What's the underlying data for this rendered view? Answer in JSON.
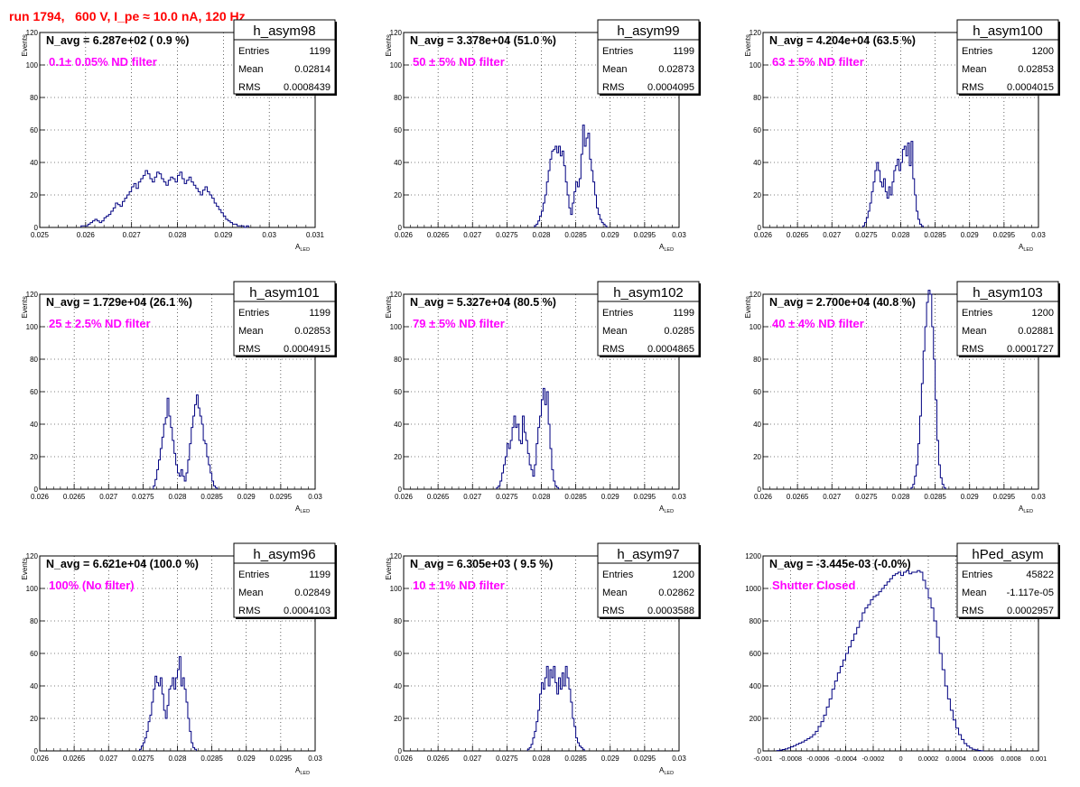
{
  "page": {
    "title": "run 1794,   600 V, I_pe ≈ 10.0 nA, 120 Hz"
  },
  "chart_data": [
    {
      "type": "histogram",
      "name": "h_asym98",
      "navg": "N_avg = 6.287e+02 ( 0.9 %)",
      "label": "0.1± 0.05% ND filter",
      "stats": {
        "entries": "1199",
        "mean": "0.02814",
        "rms": "0.0008439"
      },
      "xlabel": "A",
      "xlabel_sub": "LED",
      "ylabel": "Events",
      "xlim": [
        0.025,
        0.031
      ],
      "ylim": [
        0,
        120
      ],
      "xticks": [
        0.025,
        0.026,
        0.027,
        0.028,
        0.029,
        0.03,
        0.031
      ],
      "xtick_labels": [
        "0.025",
        "0.026",
        "0.027",
        "0.028",
        "0.029",
        "0.03",
        "0.031"
      ],
      "yticks": [
        0,
        20,
        40,
        60,
        80,
        100,
        120
      ],
      "ytick_labels": [
        "0",
        "20",
        "40",
        "60",
        "80",
        "100",
        "120"
      ],
      "bin_start": 0.0259,
      "bin_width": 5e-05,
      "counts": [
        1,
        1,
        1,
        2,
        3,
        4,
        5,
        4,
        3,
        4,
        6,
        7,
        8,
        10,
        12,
        15,
        14,
        13,
        16,
        18,
        20,
        22,
        25,
        27,
        24,
        28,
        30,
        32,
        35,
        33,
        30,
        28,
        31,
        34,
        33,
        30,
        28,
        26,
        29,
        31,
        30,
        28,
        32,
        34,
        30,
        27,
        29,
        31,
        28,
        26,
        24,
        22,
        20,
        23,
        25,
        22,
        20,
        18,
        15,
        13,
        11,
        9,
        7,
        5,
        4,
        3,
        2,
        2,
        1,
        1,
        1,
        0,
        1
      ]
    },
    {
      "type": "histogram",
      "name": "h_asym99",
      "navg": "N_avg = 3.378e+04 (51.0 %)",
      "label": "50 ± 5% ND filter",
      "stats": {
        "entries": "1199",
        "mean": "0.02873",
        "rms": "0.0004095"
      },
      "xlabel": "A",
      "xlabel_sub": "LED",
      "ylabel": "Events",
      "xlim": [
        0.026,
        0.03
      ],
      "ylim": [
        0,
        120
      ],
      "xticks": [
        0.026,
        0.0265,
        0.027,
        0.0275,
        0.028,
        0.0285,
        0.029,
        0.0295,
        0.03
      ],
      "xtick_labels": [
        "0.026",
        "0.0265",
        "0.027",
        "0.0275",
        "0.028",
        "0.0285",
        "0.029",
        "0.0295",
        "0.03"
      ],
      "yticks": [
        0,
        20,
        40,
        60,
        80,
        100,
        120
      ],
      "ytick_labels": [
        "0",
        "20",
        "40",
        "60",
        "80",
        "100",
        "120"
      ],
      "bin_start": 0.0279,
      "bin_width": 2.5e-05,
      "counts": [
        1,
        2,
        4,
        7,
        10,
        15,
        20,
        28,
        35,
        42,
        47,
        48,
        50,
        46,
        50,
        44,
        47,
        38,
        28,
        20,
        12,
        8,
        15,
        22,
        28,
        25,
        30,
        45,
        63,
        50,
        55,
        58,
        42,
        35,
        28,
        20,
        12,
        8,
        5,
        3,
        2,
        1
      ]
    },
    {
      "type": "histogram",
      "name": "h_asym100",
      "navg": "N_avg = 4.204e+04 (63.5 %)",
      "label": "63 ± 5% ND filter",
      "stats": {
        "entries": "1200",
        "mean": "0.02853",
        "rms": "0.0004015"
      },
      "xlabel": "A",
      "xlabel_sub": "LED",
      "ylabel": "Events",
      "xlim": [
        0.026,
        0.03
      ],
      "ylim": [
        0,
        120
      ],
      "xticks": [
        0.026,
        0.0265,
        0.027,
        0.0275,
        0.028,
        0.0285,
        0.029,
        0.0295,
        0.03
      ],
      "xtick_labels": [
        "0.026",
        "0.0265",
        "0.027",
        "0.0275",
        "0.028",
        "0.0285",
        "0.029",
        "0.0295",
        "0.03"
      ],
      "yticks": [
        0,
        20,
        40,
        60,
        80,
        100,
        120
      ],
      "ytick_labels": [
        "0",
        "20",
        "40",
        "60",
        "80",
        "100",
        "120"
      ],
      "bin_start": 0.02745,
      "bin_width": 2.5e-05,
      "counts": [
        1,
        3,
        6,
        10,
        15,
        22,
        28,
        35,
        40,
        35,
        28,
        25,
        30,
        22,
        18,
        25,
        20,
        28,
        35,
        38,
        42,
        35,
        40,
        48,
        50,
        44,
        52,
        38,
        53,
        30,
        20,
        10,
        5,
        2,
        1
      ]
    },
    {
      "type": "histogram",
      "name": "h_asym101",
      "navg": "N_avg = 1.729e+04 (26.1 %)",
      "label": "25 ± 2.5% ND filter",
      "stats": {
        "entries": "1199",
        "mean": "0.02853",
        "rms": "0.0004915"
      },
      "xlabel": "A",
      "xlabel_sub": "LED",
      "ylabel": "Events",
      "xlim": [
        0.026,
        0.03
      ],
      "ylim": [
        0,
        120
      ],
      "xticks": [
        0.026,
        0.0265,
        0.027,
        0.0275,
        0.028,
        0.0285,
        0.029,
        0.0295,
        0.03
      ],
      "xtick_labels": [
        "0.026",
        "0.0265",
        "0.027",
        "0.0275",
        "0.028",
        "0.0285",
        "0.029",
        "0.0295",
        "0.03"
      ],
      "yticks": [
        0,
        20,
        40,
        60,
        80,
        100,
        120
      ],
      "ytick_labels": [
        "0",
        "20",
        "40",
        "60",
        "80",
        "100",
        "120"
      ],
      "bin_start": 0.02765,
      "bin_width": 2.5e-05,
      "counts": [
        2,
        6,
        12,
        18,
        25,
        32,
        40,
        44,
        56,
        45,
        38,
        30,
        22,
        15,
        10,
        8,
        12,
        8,
        5,
        10,
        18,
        28,
        38,
        45,
        52,
        58,
        50,
        45,
        40,
        30,
        28,
        20,
        15,
        10,
        5,
        2,
        1
      ]
    },
    {
      "type": "histogram",
      "name": "h_asym102",
      "navg": "N_avg = 5.327e+04 (80.5 %)",
      "label": "79 ± 5% ND filter",
      "stats": {
        "entries": "1199",
        "mean": "0.0285",
        "rms": "0.0004865"
      },
      "xlabel": "A",
      "xlabel_sub": "LED",
      "ylabel": "Events",
      "xlim": [
        0.026,
        0.03
      ],
      "ylim": [
        0,
        120
      ],
      "xticks": [
        0.026,
        0.0265,
        0.027,
        0.0275,
        0.028,
        0.0285,
        0.029,
        0.0295,
        0.03
      ],
      "xtick_labels": [
        "0.026",
        "0.0265",
        "0.027",
        "0.0275",
        "0.028",
        "0.0285",
        "0.029",
        "0.0295",
        "0.03"
      ],
      "yticks": [
        0,
        20,
        40,
        60,
        80,
        100,
        120
      ],
      "ytick_labels": [
        "0",
        "20",
        "40",
        "60",
        "80",
        "100",
        "120"
      ],
      "bin_start": 0.02735,
      "bin_width": 2.5e-05,
      "counts": [
        1,
        2,
        5,
        10,
        15,
        20,
        28,
        25,
        30,
        38,
        45,
        38,
        40,
        30,
        28,
        45,
        35,
        30,
        22,
        15,
        12,
        8,
        15,
        28,
        38,
        45,
        55,
        62,
        52,
        60,
        40,
        25,
        12,
        5,
        2,
        1
      ]
    },
    {
      "type": "histogram",
      "name": "h_asym103",
      "navg": "N_avg = 2.700e+04 (40.8 %)",
      "label": "40 ± 4% ND filter",
      "stats": {
        "entries": "1200",
        "mean": "0.02881",
        "rms": "0.0001727"
      },
      "xlabel": "A",
      "xlabel_sub": "LED",
      "ylabel": "Events",
      "xlim": [
        0.026,
        0.03
      ],
      "ylim": [
        0,
        120
      ],
      "xticks": [
        0.026,
        0.0265,
        0.027,
        0.0275,
        0.028,
        0.0285,
        0.029,
        0.0295,
        0.03
      ],
      "xtick_labels": [
        "0.026",
        "0.0265",
        "0.027",
        "0.0275",
        "0.028",
        "0.0285",
        "0.029",
        "0.0295",
        "0.03"
      ],
      "yticks": [
        0,
        20,
        40,
        60,
        80,
        100,
        120
      ],
      "ytick_labels": [
        "0",
        "20",
        "40",
        "60",
        "80",
        "100",
        "120"
      ],
      "bin_start": 0.02815,
      "bin_width": 2.5e-05,
      "counts": [
        1,
        3,
        8,
        15,
        28,
        45,
        65,
        85,
        100,
        115,
        125,
        120,
        100,
        80,
        55,
        30,
        15,
        7,
        3,
        1
      ]
    },
    {
      "type": "histogram",
      "name": "h_asym96",
      "navg": "N_avg = 6.621e+04 (100.0 %)",
      "label": "100% (No filter)",
      "stats": {
        "entries": "1199",
        "mean": "0.02849",
        "rms": "0.0004103"
      },
      "xlabel": "A",
      "xlabel_sub": "LED",
      "ylabel": "Events",
      "xlim": [
        0.026,
        0.03
      ],
      "ylim": [
        0,
        120
      ],
      "xticks": [
        0.026,
        0.0265,
        0.027,
        0.0275,
        0.028,
        0.0285,
        0.029,
        0.0295,
        0.03
      ],
      "xtick_labels": [
        "0.026",
        "0.0265",
        "0.027",
        "0.0275",
        "0.028",
        "0.0285",
        "0.029",
        "0.0295",
        "0.03"
      ],
      "yticks": [
        0,
        20,
        40,
        60,
        80,
        100,
        120
      ],
      "ytick_labels": [
        "0",
        "20",
        "40",
        "60",
        "80",
        "100",
        "120"
      ],
      "bin_start": 0.02745,
      "bin_width": 2.5e-05,
      "counts": [
        1,
        3,
        5,
        8,
        12,
        18,
        22,
        30,
        38,
        46,
        42,
        40,
        45,
        35,
        25,
        20,
        28,
        38,
        40,
        45,
        38,
        45,
        50,
        58,
        40,
        45,
        38,
        30,
        20,
        12,
        5,
        2,
        1
      ]
    },
    {
      "type": "histogram",
      "name": "h_asym97",
      "navg": "N_avg = 6.305e+03 ( 9.5 %)",
      "label": "10 ± 1% ND filter",
      "stats": {
        "entries": "1200",
        "mean": "0.02862",
        "rms": "0.0003588"
      },
      "xlabel": "A",
      "xlabel_sub": "LED",
      "ylabel": "Events",
      "xlim": [
        0.026,
        0.03
      ],
      "ylim": [
        0,
        120
      ],
      "xticks": [
        0.026,
        0.0265,
        0.027,
        0.0275,
        0.028,
        0.0285,
        0.029,
        0.0295,
        0.03
      ],
      "xtick_labels": [
        "0.026",
        "0.0265",
        "0.027",
        "0.0275",
        "0.028",
        "0.0285",
        "0.029",
        "0.0295",
        "0.03"
      ],
      "yticks": [
        0,
        20,
        40,
        60,
        80,
        100,
        120
      ],
      "ytick_labels": [
        "0",
        "20",
        "40",
        "60",
        "80",
        "100",
        "120"
      ],
      "bin_start": 0.0278,
      "bin_width": 2.5e-05,
      "counts": [
        1,
        2,
        4,
        8,
        12,
        18,
        25,
        35,
        42,
        38,
        45,
        52,
        40,
        50,
        45,
        52,
        42,
        35,
        45,
        38,
        48,
        40,
        52,
        45,
        38,
        30,
        20,
        15,
        8,
        5,
        3,
        2,
        1
      ]
    },
    {
      "type": "histogram",
      "name": "hPed_asym",
      "navg": "N_avg = -3.445e-03 (-0.0%)",
      "label": "Shutter Closed",
      "stats": {
        "entries": "45822",
        "mean": "-1.117e-05",
        "rms": "0.0002957"
      },
      "xlabel": "",
      "xlabel_sub": "",
      "ylabel": "",
      "xlim": [
        -0.001,
        0.001
      ],
      "ylim": [
        0,
        1200
      ],
      "xticks": [
        -0.001,
        -0.0008,
        -0.0006,
        -0.0004,
        -0.0002,
        0,
        0.0002,
        0.0004,
        0.0006,
        0.0008,
        0.001
      ],
      "xtick_labels": [
        "-0.001",
        "-0.0008",
        "-0.0006",
        "-0.0004",
        "-0.0002",
        "0",
        "0.0002",
        "0.0004",
        "0.0006",
        "0.0008",
        "0.001"
      ],
      "yticks": [
        0,
        200,
        400,
        600,
        800,
        1000,
        1200
      ],
      "ytick_labels": [
        "0",
        "200",
        "400",
        "600",
        "800",
        "1000",
        "1200"
      ],
      "bin_start": -0.0009,
      "bin_width": 2e-05,
      "counts": [
        2,
        5,
        8,
        12,
        18,
        25,
        32,
        40,
        48,
        55,
        65,
        75,
        85,
        100,
        120,
        150,
        180,
        220,
        270,
        320,
        380,
        430,
        480,
        520,
        560,
        600,
        640,
        680,
        720,
        760,
        800,
        850,
        880,
        900,
        930,
        950,
        960,
        980,
        1000,
        1020,
        1040,
        1060,
        1080,
        1090,
        1100,
        1080,
        1100,
        1110,
        1090,
        1100,
        1100,
        1110,
        1100,
        1050,
        1000,
        940,
        880,
        800,
        700,
        600,
        500,
        400,
        320,
        250,
        190,
        140,
        100,
        70,
        45,
        30,
        18,
        10,
        6,
        3,
        1
      ]
    }
  ]
}
